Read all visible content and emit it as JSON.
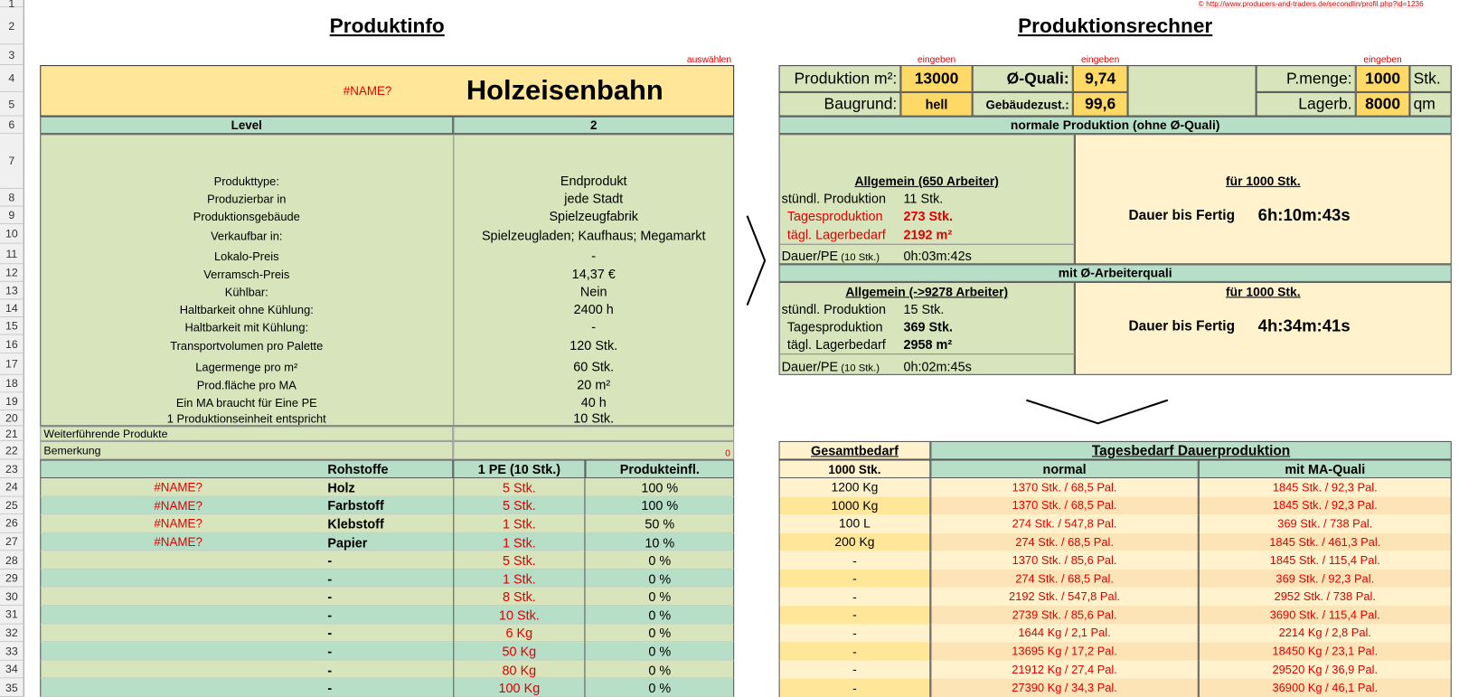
{
  "row_numbers": [
    "1",
    "2",
    "3",
    "4",
    "5",
    "6",
    "7",
    "8",
    "9",
    "10",
    "11",
    "12",
    "13",
    "14",
    "15",
    "16",
    "17",
    "18",
    "19",
    "20",
    "21",
    "22",
    "23",
    "24",
    "25",
    "26",
    "27",
    "28",
    "29",
    "30",
    "31",
    "32",
    "33",
    "34",
    "35"
  ],
  "produktinfo": {
    "title": "Produktinfo",
    "select_hint": "auswählen",
    "name_error": "#NAME?",
    "product": "Holzeisenbahn",
    "level": {
      "label": "Level",
      "value": "2"
    },
    "info": [
      {
        "label": "Produkttype:",
        "value": "Endprodukt"
      },
      {
        "label": "Produzierbar in",
        "value": "jede Stadt"
      },
      {
        "label": "Produktionsgebäude",
        "value": "Spielzeugfabrik"
      },
      {
        "label": "Verkaufbar in:",
        "value": "Spielzeugladen; Kaufhaus; Megamarkt"
      },
      {
        "label": "Lokalo-Preis",
        "value": "-"
      },
      {
        "label": "Verramsch-Preis",
        "value": "14,37 €"
      },
      {
        "label": "Kühlbar:",
        "value": "Nein"
      },
      {
        "label": "Haltbarkeit ohne Kühlung:",
        "value": "2400 h"
      },
      {
        "label": "Haltbarkeit mit Kühlung:",
        "value": "-"
      },
      {
        "label": "Transportvolumen pro Palette",
        "value": "120 Stk."
      },
      {
        "label": "Lagermenge pro m²",
        "value": "60 Stk."
      },
      {
        "label": "Prod.fläche pro MA",
        "value": "20 m²"
      },
      {
        "label": "Ein MA braucht für Eine PE",
        "value": "40 h"
      },
      {
        "label": "1 Produktionseinheit entspricht",
        "value": "10 Stk."
      }
    ],
    "further_products": "Weiterführende Produkte",
    "remark": {
      "label": "Bemerkung",
      "value": "0"
    },
    "raw_header": {
      "name": "Rohstoffe",
      "amount": "1 PE (10 Stk.)",
      "influence": "Produkteinfl."
    },
    "raw_rows": [
      {
        "error": "#NAME?",
        "name": "Holz",
        "amount": "5 Stk.",
        "influence": "100 %"
      },
      {
        "error": "#NAME?",
        "name": "Farbstoff",
        "amount": "5 Stk.",
        "influence": "100 %"
      },
      {
        "error": "#NAME?",
        "name": "Klebstoff",
        "amount": "1 Stk.",
        "influence": "50 %"
      },
      {
        "error": "#NAME?",
        "name": "Papier",
        "amount": "1 Stk.",
        "influence": "10 %"
      },
      {
        "name": "-",
        "amount": "5 Stk.",
        "influence": "0 %"
      },
      {
        "name": "-",
        "amount": "1 Stk.",
        "influence": "0 %"
      },
      {
        "name": "-",
        "amount": "8 Stk.",
        "influence": "0 %"
      },
      {
        "name": "-",
        "amount": "10 Stk.",
        "influence": "0 %"
      },
      {
        "name": "-",
        "amount": "6 Kg",
        "influence": "0 %"
      },
      {
        "name": "-",
        "amount": "50 Kg",
        "influence": "0 %"
      },
      {
        "name": "-",
        "amount": "80 Kg",
        "influence": "0 %"
      },
      {
        "name": "-",
        "amount": "100 Kg",
        "influence": "0 %"
      }
    ]
  },
  "produktionsrechner": {
    "title": "Produktionsrechner",
    "link": "© http://www.producers-and-traders.de/secondlin/profil.php?id=1236",
    "input_hint": "eingeben",
    "inputs": {
      "area_label": "Produktion m²:",
      "area": "13000",
      "quality_label": "Ø-Quali:",
      "quality": "9,74",
      "amount_label": "P.menge:",
      "amount": "1000",
      "amount_unit": "Stk.",
      "ground_label": "Baugrund:",
      "ground": "hell",
      "building_label": "Gebäudezust.:",
      "building": "99,6",
      "storage_label": "Lagerb.",
      "storage": "8000",
      "storage_unit": "qm"
    },
    "sections": [
      {
        "heading": "normale Produktion (ohne Ø-Quali)",
        "general": "Allgemein (650 Arbeiter)",
        "lines": [
          {
            "label": "stündl. Produktion",
            "value": "11 Stk."
          },
          {
            "label": "Tagesproduktion",
            "value": "273 Stk.",
            "emphasis": true,
            "color": "#e00000"
          },
          {
            "label": "tägl. Lagerbedarf",
            "value": "2192 m²",
            "emphasis": true,
            "color": "#e00000"
          }
        ],
        "duration_label": "Dauer/PE",
        "duration_note": "(10 Stk.)",
        "duration": "0h:03m:42s",
        "target": "für 1000 Stk.",
        "finish_label": "Dauer bis Fertig",
        "finish": "6h:10m:43s"
      },
      {
        "heading": "mit Ø-Arbeiterquali",
        "general": "Allgemein (->9278 Arbeiter)",
        "lines": [
          {
            "label": "stündl. Produktion",
            "value": "15 Stk."
          },
          {
            "label": "Tagesproduktion",
            "value": "369 Stk.",
            "emphasis": true
          },
          {
            "label": "tägl. Lagerbedarf",
            "value": "2958 m²",
            "emphasis": true
          }
        ],
        "duration_label": "Dauer/PE",
        "duration_note": "(10 Stk.)",
        "duration": "0h:02m:45s",
        "target": "für 1000 Stk.",
        "finish_label": "Dauer bis Fertig",
        "finish": "4h:34m:41s"
      }
    ]
  },
  "bedarf": {
    "total_heading": "Gesamtbedarf",
    "total_sub": "1000 Stk.",
    "daily_heading": "Tagesbedarf Dauerproduktion",
    "normal": "normal",
    "quality": "mit MA-Quali",
    "rows": [
      {
        "total": "1200 Kg",
        "normal": "1370 Stk. / 68,5 Pal.",
        "quality": "1845 Stk. / 92,3 Pal."
      },
      {
        "total": "1000 Kg",
        "normal": "1370 Stk. / 68,5 Pal.",
        "quality": "1845 Stk. / 92,3 Pal."
      },
      {
        "total": "100 L",
        "normal": "274 Stk. / 547,8 Pal.",
        "quality": "369 Stk. / 738 Pal."
      },
      {
        "total": "200 Kg",
        "normal": "274 Stk. / 68,5 Pal.",
        "quality": "1845 Stk. / 461,3 Pal."
      },
      {
        "total": "-",
        "normal": "1370 Stk. / 85,6 Pal.",
        "quality": "1845 Stk. / 115,4 Pal."
      },
      {
        "total": "-",
        "normal": "274 Stk. / 68,5 Pal.",
        "quality": "369 Stk. / 92,3 Pal."
      },
      {
        "total": "-",
        "normal": "2192 Stk. / 547,8 Pal.",
        "quality": "2952 Stk. / 738 Pal."
      },
      {
        "total": "-",
        "normal": "2739 Stk. / 85,6 Pal.",
        "quality": "3690 Stk. / 115,4 Pal."
      },
      {
        "total": "-",
        "normal": "1644 Kg / 2,1 Pal.",
        "quality": "2214 Kg / 2,8 Pal."
      },
      {
        "total": "-",
        "normal": "13695 Kg / 17,2 Pal.",
        "quality": "18450 Kg / 23,1 Pal."
      },
      {
        "total": "-",
        "normal": "21912 Kg / 27,4 Pal.",
        "quality": "29520 Kg / 36,9 Pal."
      },
      {
        "total": "-",
        "normal": "27390 Kg / 34,3 Pal.",
        "quality": "36900 Kg / 46,1 Pal."
      }
    ]
  }
}
